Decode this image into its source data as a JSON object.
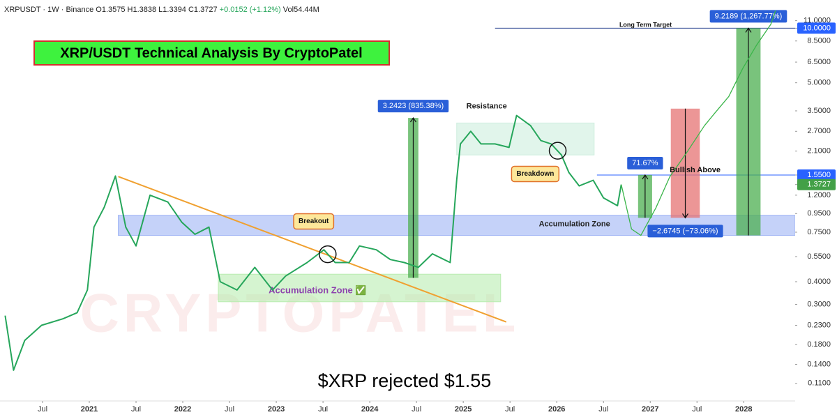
{
  "header": {
    "symbol": "XRPUSDT",
    "interval": "1W",
    "exchange": "Binance",
    "ohlc": "O1.3575 H1.3838 L1.3394 C1.3727",
    "change": "+0.0152 (+1.12%)",
    "volume": "Vol54.44M"
  },
  "chart_data": {
    "type": "line",
    "title": "XRP/USDT Technical Analysis By CryptoPatel",
    "caption": "$XRP rejected $1.55",
    "watermark": "CRYPTOPATEL",
    "yscale": "log",
    "xlim": [
      2020.045,
      2028.55
    ],
    "ylim": [
      0.088,
      14.3
    ],
    "xticks": [
      {
        "value": 2020.5,
        "label": "Jul"
      },
      2021,
      {
        "value": 2021.5,
        "label": "Jul"
      },
      2022,
      {
        "value": 2022.5,
        "label": "Jul"
      },
      2023,
      {
        "value": 2023.5,
        "label": "Jul"
      },
      2024,
      {
        "value": 2024.5,
        "label": "Jul"
      },
      2025,
      {
        "value": 2025.5,
        "label": "Jul"
      },
      2026,
      {
        "value": 2026.5,
        "label": "Jul"
      },
      2027,
      {
        "value": 2027.5,
        "label": "Jul"
      },
      2028
    ],
    "yticks": [
      {
        "value": 11,
        "label": "11.0000"
      },
      {
        "value": 10,
        "label": "10.0000",
        "highlight": "#2962ff"
      },
      {
        "value": 8.5,
        "label": "8.5000"
      },
      {
        "value": 6.5,
        "label": "6.5000"
      },
      {
        "value": 5,
        "label": "5.0000"
      },
      {
        "value": 3.5,
        "label": "3.5000"
      },
      {
        "value": 2.7,
        "label": "2.7000"
      },
      {
        "value": 2.1,
        "label": "2.1000"
      },
      {
        "value": 1.55,
        "label": "1.5500",
        "highlight": "#2962ff"
      },
      {
        "value": 1.3727,
        "label": "1.3727",
        "highlight": "#43a047"
      },
      {
        "value": 1.2,
        "label": "1.2000"
      },
      {
        "value": 0.95,
        "label": "0.9500"
      },
      {
        "value": 0.75,
        "label": "0.7500"
      },
      {
        "value": 0.55,
        "label": "0.5500"
      },
      {
        "value": 0.4,
        "label": "0.4000"
      },
      {
        "value": 0.3,
        "label": "0.3000"
      },
      {
        "value": 0.23,
        "label": "0.2300"
      },
      {
        "value": 0.18,
        "label": "0.1800"
      },
      {
        "value": 0.14,
        "label": "0.1400"
      },
      {
        "value": 0.11,
        "label": "0.1100"
      }
    ],
    "series": [
      {
        "color": "#26a65b",
        "width": 2,
        "x": [
          2020.1,
          2020.19,
          2020.31,
          2020.49,
          2020.72,
          2020.87,
          2020.98,
          2021.05,
          2021.16,
          2021.28,
          2021.39,
          2021.5,
          2021.65,
          2021.84,
          2021.99,
          2022.13,
          2022.28,
          2022.4,
          2022.58,
          2022.77,
          2022.96,
          2023.1,
          2023.33,
          2023.51,
          2023.63,
          2023.78,
          2023.89,
          2024.07,
          2024.22,
          2024.37,
          2024.52,
          2024.67,
          2024.86,
          2024.93,
          2024.97,
          2025.08,
          2025.19,
          2025.34,
          2025.49,
          2025.57,
          2025.72,
          2025.83,
          2025.94,
          2026.05,
          2026.13,
          2026.24,
          2026.39,
          2026.5,
          2026.65,
          2026.69
        ],
        "values": [
          0.26,
          0.13,
          0.19,
          0.23,
          0.25,
          0.27,
          0.36,
          0.8,
          1.03,
          1.53,
          0.8,
          0.63,
          1.2,
          1.1,
          0.85,
          0.73,
          0.8,
          0.4,
          0.36,
          0.48,
          0.36,
          0.43,
          0.51,
          0.6,
          0.51,
          0.51,
          0.63,
          0.6,
          0.53,
          0.51,
          0.48,
          0.57,
          0.51,
          1.46,
          2.3,
          2.7,
          2.3,
          2.3,
          2.2,
          3.3,
          2.9,
          2.4,
          2.3,
          2.0,
          1.6,
          1.35,
          1.45,
          1.16,
          1.05,
          1.3727
        ]
      },
      {
        "color": "#3bb54a",
        "width": 1.3,
        "x": [
          2026.69,
          2026.8,
          2026.9,
          2027.06,
          2027.21,
          2027.4,
          2027.58,
          2027.69,
          2027.84,
          2027.99,
          2028.14,
          2028.29,
          2028.34
        ],
        "values": [
          1.3727,
          0.78,
          0.72,
          1.02,
          1.52,
          2.1,
          2.9,
          3.4,
          4.2,
          6.0,
          8.1,
          10.5,
          12.5
        ]
      }
    ],
    "zones": [
      {
        "label": "Accumulation Zone",
        "x": [
          2021.31,
          2028.55
        ],
        "y": [
          0.72,
          0.93
        ],
        "color": "#9fb4f5"
      },
      {
        "label": "Accumulation Zone ✅",
        "x": [
          2022.38,
          2025.4
        ],
        "y": [
          0.31,
          0.44
        ],
        "color": "#b9ecb0"
      },
      {
        "x": [
          2024.93,
          2026.4
        ],
        "y": [
          2.0,
          3.0
        ],
        "color": "#cdeede"
      }
    ],
    "trendlines": [
      {
        "x": [
          2021.31,
          2025.46
        ],
        "y": [
          1.52,
          0.24
        ],
        "color": "#f0a030"
      }
    ],
    "hlines": [
      {
        "value": 10.0,
        "x": [
          2025.34,
          2028.55
        ],
        "color": "#1e3a8a"
      },
      {
        "value": 1.55,
        "x": [
          2026.43,
          2028.55
        ],
        "color": "#2962ff"
      }
    ],
    "measures": [
      {
        "label": "3.2423 (835.38%)",
        "x": [
          2024.41,
          2024.52
        ],
        "y": [
          0.42,
          3.2
        ],
        "color": "#4caf50"
      },
      {
        "label": "9.2189 (1,267.77%)",
        "x": [
          2027.92,
          2028.18
        ],
        "y": [
          0.72,
          10.0
        ],
        "color": "#4caf50"
      },
      {
        "label": "71.67%",
        "x": [
          2026.87,
          2027.02
        ],
        "y": [
          0.9,
          1.55
        ],
        "color": "#4caf50"
      },
      {
        "label": "−2.6745 (−73.06%)",
        "x": [
          2027.22,
          2027.53
        ],
        "y": [
          3.6,
          0.9
        ],
        "color": "#e57373"
      }
    ],
    "markers": [
      {
        "x": 2023.55,
        "y": 0.567
      },
      {
        "x": 2026.01,
        "y": 2.11
      }
    ],
    "annotations": [
      {
        "text": "Long Term Target",
        "x": 2026.95,
        "y": 10.4,
        "style": "small"
      },
      {
        "text": "Resistance",
        "x": 2025.25,
        "y": 3.71,
        "style": "plain"
      },
      {
        "text": "Bullish Above",
        "x": 2027.48,
        "y": 1.65,
        "style": "bold"
      },
      {
        "text": "Breakdown",
        "x": 2025.77,
        "y": 1.57,
        "style": "tag"
      },
      {
        "text": "Breakout",
        "x": 2023.4,
        "y": 0.86,
        "style": "tag"
      },
      {
        "text": "Accumulation Zone",
        "x": 2026.19,
        "y": 0.83,
        "style": "plain"
      }
    ]
  }
}
